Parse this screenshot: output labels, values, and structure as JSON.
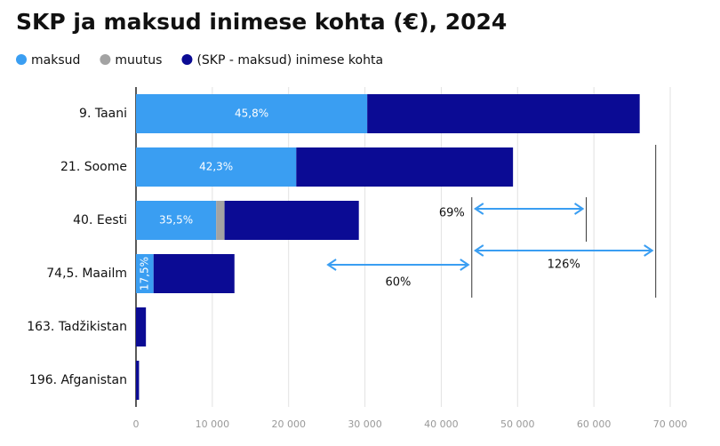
{
  "chart_data": {
    "type": "stacked-barh",
    "title": "SKP ja maksud inimese kohta (€), 2024",
    "categories": [
      "9. Taani",
      "21. Soome",
      "40. Eesti",
      "74,5. Maailm",
      "163. Tadžikistan",
      "196. Afganistan"
    ],
    "series": [
      {
        "name": "maksud",
        "color": "#3a9ef2",
        "values": [
          30300,
          21000,
          10500,
          2300,
          null,
          null
        ],
        "share_labels": [
          "45,8%",
          "42,3%",
          "35,5%",
          "17,5%",
          null,
          null
        ]
      },
      {
        "name": "muutus",
        "color": "#a3a3a3",
        "values": [
          null,
          null,
          1100,
          null,
          null,
          null
        ]
      },
      {
        "name": "(SKP - maksud) inimese kohta",
        "color": "#0b0b94",
        "values": [
          35700,
          28400,
          17600,
          10600,
          1300,
          400
        ]
      }
    ],
    "xlim": [
      0,
      70000
    ],
    "xticks": [
      0,
      {
        "value": 10000,
        "label": "10 000"
      },
      {
        "value": 20000,
        "label": "20 000"
      },
      {
        "value": 30000,
        "label": "30 000"
      },
      {
        "value": 40000,
        "label": "40 000"
      },
      {
        "value": 50000,
        "label": "50 000"
      },
      {
        "value": 60000,
        "label": "60 000"
      },
      {
        "value": 70000,
        "label": "70 000"
      }
    ],
    "grid": true,
    "annotations": [
      {
        "text": "69%",
        "from": 44000,
        "to": 59000
      },
      {
        "text": "126%",
        "from": 44000,
        "to": 68100
      },
      {
        "text": "60%",
        "from": 24700,
        "to": 44000
      }
    ]
  }
}
